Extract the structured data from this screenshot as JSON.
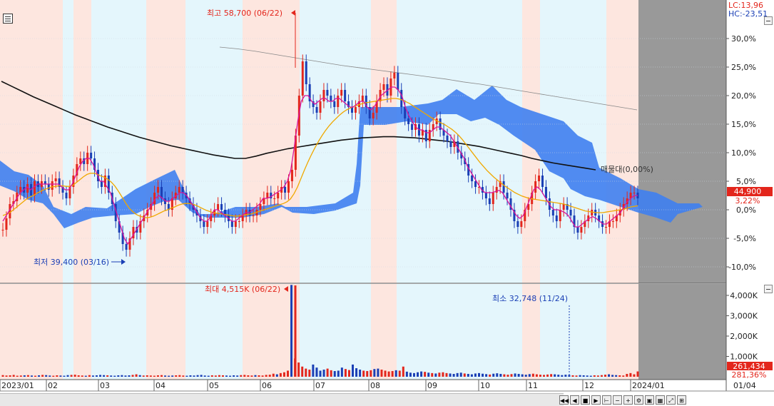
{
  "chart_data": [
    {
      "type": "candlestick",
      "title": "",
      "x_axis": {
        "labels": [
          "2023/01",
          "02",
          "03",
          "04",
          "05",
          "06",
          "07",
          "08",
          "09",
          "10",
          "11",
          "12",
          "2024/01"
        ]
      },
      "y_axis": {
        "labels": [
          "30,0%",
          "25,0%",
          "20,0%",
          "15,0%",
          "10,0%",
          "5,0%",
          "0,0%",
          "-5,0%",
          "-10,0%"
        ],
        "ylim": [
          -12,
          36
        ],
        "units": "%"
      },
      "legend": {
        "lc": "LC:13,96",
        "hc": "HC:-23,51"
      },
      "annotations": {
        "high": "최고 58,700 (06/22)",
        "low": "최저 39,400 (03/16)",
        "current_price": "44,900",
        "current_pct": "3,22%",
        "mid_label": "매물대(0,00%)"
      },
      "close_pct": [
        -3.5,
        -1.5,
        1,
        1.5,
        3,
        4,
        3,
        4.5,
        2.5,
        5,
        4,
        5,
        4.5,
        3.5,
        5,
        5.5,
        4,
        3,
        2,
        4,
        6,
        8,
        9,
        8,
        10,
        9,
        7,
        5,
        4,
        6,
        3,
        1,
        -2,
        -4,
        -6,
        -7,
        -5,
        -3,
        -4,
        -2,
        -1,
        0,
        1,
        3,
        4,
        2,
        1,
        0,
        2,
        3,
        4,
        3,
        2,
        1,
        0,
        -1,
        -2,
        -3,
        -2,
        -1,
        0,
        1,
        0,
        -1,
        -2,
        -3,
        -2,
        -2,
        -1,
        0,
        -1,
        -1,
        0,
        1,
        2,
        3,
        2,
        2,
        3,
        4,
        3,
        5,
        7,
        13,
        20,
        26,
        22,
        19,
        18,
        17,
        19,
        21,
        20,
        19,
        18,
        20,
        21,
        19,
        18,
        17,
        18,
        19,
        20,
        18,
        16,
        17,
        19,
        21,
        22,
        20,
        23,
        24,
        21,
        18,
        16,
        15,
        14,
        15,
        13,
        14,
        12,
        14,
        15,
        16,
        14,
        13,
        12,
        11,
        12,
        10,
        9,
        8,
        6,
        5,
        4,
        4,
        3,
        2,
        1,
        3,
        4,
        5,
        3,
        2,
        0,
        -2,
        -3,
        -2,
        0,
        1,
        3,
        5,
        6,
        4,
        2,
        0,
        -1,
        -2,
        0,
        1,
        0,
        -1,
        -3,
        -4,
        -3,
        -2,
        -1,
        0,
        -1,
        -2,
        -3,
        -3,
        -2,
        -2,
        -1,
        0,
        1,
        2,
        3,
        3,
        2
      ],
      "ma5_pct": [
        -2,
        -1,
        0,
        1,
        2,
        3,
        3.5,
        4,
        3.5,
        4,
        4.5,
        4.5,
        4.5,
        4.5,
        4.5,
        4.5,
        4.5,
        4,
        3.5,
        3.5,
        4.5,
        6,
        7.5,
        8.5,
        9,
        9,
        8,
        6.5,
        5,
        5,
        4,
        3,
        1,
        -1,
        -3,
        -5,
        -6,
        -5,
        -4,
        -3,
        -2,
        -1,
        0,
        1,
        2,
        2.5,
        2,
        1.5,
        1.5,
        2,
        2.5,
        3,
        3,
        2.5,
        1.5,
        0.5,
        -0.5,
        -1.5,
        -2,
        -2,
        -1,
        0,
        0,
        -0.5,
        -1,
        -1.5,
        -2,
        -2,
        -1.5,
        -1,
        -0.5,
        -0.5,
        0,
        0.5,
        1,
        2,
        2,
        2.2,
        2.6,
        3,
        3.4,
        4,
        5,
        7,
        11,
        15.5,
        19,
        20,
        20,
        19,
        18.5,
        19,
        19.5,
        19.5,
        19,
        19,
        19.5,
        19.5,
        19,
        18.5,
        18,
        18,
        18.5,
        19,
        19,
        18,
        17.5,
        18,
        19,
        20,
        20.5,
        21,
        21.5,
        21.5,
        21,
        20,
        18,
        16.5,
        15.5,
        14.5,
        14,
        14,
        13.5,
        13.5,
        14,
        14.5,
        14.5,
        14,
        13.5,
        13,
        12,
        11,
        10,
        9,
        7.5,
        6.5,
        5.5,
        4.5,
        3.5,
        3,
        3,
        3,
        3.2,
        3.4,
        3,
        2,
        1,
        0,
        -1,
        -1.5,
        -1,
        0.5,
        2,
        3.5,
        4,
        3.5,
        2.5,
        1.5,
        0.5,
        0,
        0,
        -0.2,
        -0.5,
        -1,
        -2,
        -3,
        -3,
        -2.5,
        -2,
        -1.5,
        -1.2,
        -1.5,
        -2,
        -2.5,
        -2.5,
        -2,
        -1.5,
        -1,
        -0.5,
        0.5,
        1.5,
        2,
        2.5,
        2.5
      ],
      "ma20_pct": [
        -1,
        -0.8,
        -0.5,
        0,
        0.5,
        1,
        1.5,
        2,
        2.3,
        2.6,
        3,
        3.3,
        3.6,
        3.8,
        4,
        4.1,
        4.2,
        4.2,
        4.1,
        4.1,
        4.3,
        4.8,
        5.3,
        5.8,
        6.2,
        6.4,
        6.4,
        6.2,
        5.9,
        5.7,
        5.3,
        4.8,
        4.1,
        3.2,
        2.2,
        1.2,
        0.3,
        -0.3,
        -0.8,
        -1.1,
        -1.3,
        -1.4,
        -1.3,
        -1.1,
        -0.8,
        -0.5,
        -0.2,
        0,
        0.3,
        0.5,
        0.8,
        1,
        1.1,
        1.1,
        1,
        0.8,
        0.5,
        0.2,
        -0.1,
        -0.3,
        -0.5,
        -0.6,
        -0.7,
        -0.8,
        -0.9,
        -1,
        -1.1,
        -1.1,
        -1,
        -0.9,
        -0.8,
        -0.7,
        -0.5,
        -0.3,
        -0.1,
        0.1,
        0.3,
        0.5,
        0.7,
        0.9,
        1.1,
        1.4,
        1.9,
        2.8,
        4,
        5.5,
        7,
        8.4,
        9.7,
        10.9,
        12,
        13,
        13.9,
        14.7,
        15.4,
        16,
        16.6,
        17.1,
        17.5,
        17.8,
        18.1,
        18.3,
        18.5,
        18.7,
        18.8,
        18.9,
        19,
        19.1,
        19.2,
        19.3,
        19.4,
        19.5,
        19.5,
        19.4,
        19.2,
        18.9,
        18.6,
        18.2,
        17.8,
        17.4,
        17,
        16.6,
        16.2,
        15.8,
        15.5,
        15.2,
        14.9,
        14.5,
        14.1,
        13.6,
        13,
        12.3,
        11.5,
        10.7,
        9.9,
        9.1,
        8.3,
        7.6,
        6.9,
        6.3,
        5.7,
        5.2,
        4.7,
        4.2,
        3.8,
        3.4,
        3,
        2.7,
        2.4,
        2.2,
        2,
        1.9,
        1.8,
        1.7,
        1.6,
        1.5,
        1.4,
        1.3,
        1.2,
        1.1,
        1,
        0.8,
        0.6,
        0.4,
        0.2,
        0,
        -0.2,
        -0.3,
        -0.4,
        -0.5,
        -0.5,
        -0.5,
        -0.4,
        -0.3,
        -0.2,
        -0.1,
        0,
        0.1,
        0.3,
        0.5,
        0.6,
        0.7
      ],
      "ma120_pct": [
        22.5,
        21.6,
        20.7,
        19.8,
        19,
        18.2,
        17.4,
        16.6,
        15.9,
        15.2,
        14.5,
        13.9,
        13.3,
        12.7,
        12.2,
        11.7,
        11.2,
        10.8,
        10.4,
        10,
        9.6,
        9.3,
        9,
        9,
        9.4,
        9.9,
        10.3,
        10.7,
        11,
        11.3,
        11.6,
        11.9,
        12.2,
        12.4,
        12.6,
        12.7,
        12.8,
        12.8,
        12.7,
        12.6,
        12.4,
        12.2,
        12,
        11.7,
        11.4,
        11.1,
        10.7,
        10.3,
        9.9,
        9.5,
        9,
        8.6,
        8.2,
        7.9,
        7.6,
        7.3,
        7
      ],
      "ma240_pct": [
        28.5,
        28.2,
        27.8,
        27.3,
        26.8,
        26.3,
        25.8,
        25.3,
        24.9,
        24.5,
        24.1,
        23.7,
        23.3,
        22.9,
        22.4,
        22,
        21.5,
        21,
        20.5,
        20,
        19.5,
        19,
        18.5,
        18,
        17.5
      ]
    },
    {
      "type": "bar",
      "title": "",
      "y_axis": {
        "labels": [
          "4,000K",
          "3,000K",
          "2,000K",
          "1,000K"
        ],
        "ylim": [
          0,
          4600
        ],
        "units": "K"
      },
      "annotations": {
        "max": "최대 4,515K (06/22)",
        "min": "최소 32,748 (11/24)",
        "current_volume": "261,434",
        "current_pct": "281,36%"
      },
      "values_k": [
        80,
        60,
        70,
        90,
        50,
        60,
        70,
        80,
        60,
        50,
        70,
        90,
        80,
        60,
        50,
        70,
        60,
        50,
        80,
        90,
        100,
        70,
        60,
        50,
        80,
        60,
        70,
        90,
        80,
        70,
        60,
        50,
        70,
        80,
        60,
        70,
        90,
        120,
        80,
        60,
        70,
        60,
        50,
        70,
        80,
        60,
        50,
        60,
        70,
        80,
        60,
        50,
        70,
        60,
        80,
        90,
        60,
        50,
        70,
        60,
        80,
        70,
        60,
        50,
        70,
        60,
        80,
        90,
        70,
        60,
        80,
        70,
        60,
        90,
        100,
        150,
        120,
        180,
        220,
        300,
        4515,
        900,
        700,
        500,
        400,
        350,
        600,
        450,
        300,
        350,
        400,
        320,
        280,
        300,
        450,
        380,
        330,
        600,
        420,
        350,
        300,
        280,
        320,
        380,
        400,
        350,
        300,
        260,
        280,
        320,
        300,
        500,
        250,
        200,
        180,
        220,
        260,
        240,
        200,
        180,
        160,
        200,
        220,
        180,
        160,
        140,
        180,
        200,
        160,
        140,
        120,
        160,
        180,
        150,
        130,
        110,
        150,
        170,
        140,
        120,
        100,
        130,
        160,
        140,
        120,
        100,
        130,
        150,
        120,
        100,
        90,
        110,
        130,
        120,
        100,
        80,
        100,
        90,
        70,
        60,
        80,
        70,
        60,
        50,
        70,
        60,
        80,
        100,
        120,
        90,
        80,
        70,
        60,
        140,
        180,
        120,
        261
      ]
    }
  ],
  "toolbar": {
    "date_right": "01/04"
  }
}
